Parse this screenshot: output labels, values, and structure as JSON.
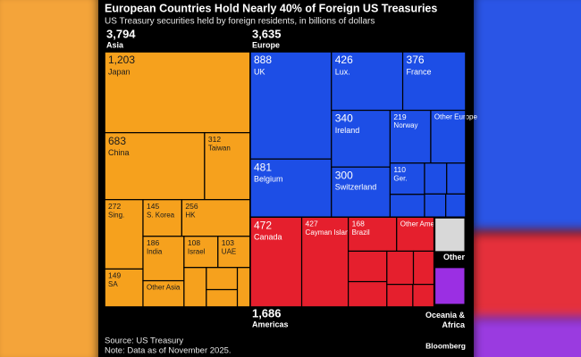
{
  "chart_data": {
    "type": "treemap",
    "title": "European Countries Hold Nearly 40% of Foreign US Treasuries",
    "subtitle": "US Treasury securities held by foreign residents, in billions of dollars",
    "source": "Source: US Treasury",
    "note": "Note: Data as of November 2025.",
    "credit": "Bloomberg",
    "groups": [
      {
        "name": "Asia",
        "value": 3794,
        "value_label": "3,794",
        "color": "#f6a11d",
        "text_color": "#1b1b1b",
        "label_position": "top",
        "items": [
          "Japan",
          "China",
          "Taiwan",
          "Sing.",
          "SA",
          "S. Korea",
          "HK",
          "India",
          "Other Asia",
          "Israel",
          "UAE",
          null,
          null,
          null,
          null
        ],
        "values": [
          1203,
          683,
          312,
          272,
          149,
          145,
          256,
          186,
          110,
          108,
          103,
          90,
          70,
          55,
          52
        ],
        "value_labels": [
          "1,203",
          "683",
          "312",
          "272",
          "149",
          "145",
          "256",
          "186",
          null,
          "108",
          "103",
          null,
          null,
          null,
          null
        ]
      },
      {
        "name": "Europe",
        "value": 3635,
        "value_label": "3,635",
        "color": "#1d4ee6",
        "text_color": "#ffffff",
        "label_position": "top",
        "items": [
          "UK",
          "Belgium",
          "Lux.",
          "France",
          "Ireland",
          "Switzerland",
          "Norway",
          "Other Europe",
          "Ger.",
          null,
          null,
          null,
          null,
          null
        ],
        "values": [
          888,
          481,
          426,
          376,
          340,
          300,
          219,
          188,
          110,
          80,
          70,
          60,
          50,
          47
        ],
        "value_labels": [
          "888",
          "481",
          "426",
          "376",
          "340",
          "300",
          "219",
          null,
          "110",
          null,
          null,
          null,
          null,
          null
        ]
      },
      {
        "name": "Americas",
        "value": 1686,
        "value_label": "1,686",
        "color": "#e51f2d",
        "text_color": "#ffffff",
        "label_position": "bottom",
        "items": [
          "Canada",
          "Cayman Islands",
          "Brazil",
          "Other Amer.",
          null,
          null,
          null,
          null,
          null,
          null
        ],
        "values": [
          472,
          427,
          168,
          130,
          120,
          100,
          90,
          70,
          60,
          49
        ],
        "value_labels": [
          "472",
          "427",
          "168",
          null,
          null,
          null,
          null,
          null,
          null,
          null
        ]
      },
      {
        "name": "Other",
        "value": 160,
        "color": "#d8d8d8",
        "label_position": "below-box"
      },
      {
        "name": "Oceania & Africa",
        "value": 130,
        "color": "#9b2fe3",
        "label_position": "below-box"
      }
    ]
  }
}
